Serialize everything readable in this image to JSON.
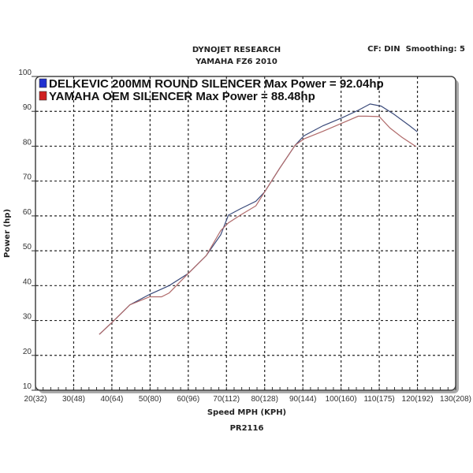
{
  "chart_data": {
    "type": "line",
    "title": "DYNOJET RESEARCH",
    "subtitle": "YAMAHA FZ6 2010",
    "info": "CF: DIN  Smoothing: 5",
    "xlabel": "Speed MPH (KPH)",
    "ylabel": "Power (hp)",
    "footer": "PR2116",
    "xlim": [
      20,
      130
    ],
    "ylim": [
      10,
      100
    ],
    "grid": true,
    "legend_position": "top-left",
    "xticks": [
      20,
      30,
      40,
      50,
      60,
      70,
      80,
      90,
      100,
      110,
      120,
      130
    ],
    "xtick_labels": [
      "20(32)",
      "30(48)",
      "40(64)",
      "50(80)",
      "60(96)",
      "70(112)",
      "80(128)",
      "90(144)",
      "100(160)",
      "110(175)",
      "120(192)",
      "130(208)"
    ],
    "yticks": [
      10,
      20,
      30,
      40,
      50,
      60,
      70,
      80,
      90,
      100
    ],
    "ytick_labels": [
      "10",
      "20",
      "30",
      "40",
      "50",
      "60",
      "70",
      "80",
      "90",
      "100"
    ],
    "series": [
      {
        "name": "DELKEVIC 200MM ROUND SILENCER Max Power = 92.04hp",
        "color": "#3a4a7a",
        "swatch": "#2030d0",
        "x": [
          36.7,
          40,
          44.7,
          49.9,
          55,
          60,
          64.7,
          68.5,
          70.5,
          73.6,
          77.7,
          80,
          83.9,
          88,
          90.3,
          95.3,
          100.2,
          104.5,
          107.6,
          110.5,
          113.8,
          117.9,
          120
        ],
        "y": [
          26,
          29.4,
          34.5,
          37.5,
          40,
          43.5,
          48.6,
          54.6,
          60.2,
          62,
          64.2,
          66.9,
          73.6,
          80.3,
          83,
          85.9,
          88.1,
          90.3,
          92.1,
          91.5,
          89.2,
          85.9,
          84.1
        ]
      },
      {
        "name": "YAMAHA OEM SILENCER Max Power = 88.48hp",
        "color": "#b06a6a",
        "swatch": "#d02020",
        "x": [
          36.7,
          40,
          44.7,
          49.9,
          53,
          55,
          60,
          64.7,
          68.5,
          70.5,
          73.6,
          77.7,
          80,
          83.9,
          88,
          90.3,
          95.3,
          100.2,
          104.5,
          106.6,
          110,
          112.8,
          116,
          119.6
        ],
        "y": [
          26,
          29.4,
          34.5,
          36.8,
          36.8,
          37.9,
          43.5,
          48.6,
          55.8,
          58,
          60.2,
          62.9,
          66.9,
          73.6,
          80.3,
          82.1,
          84.3,
          86.6,
          88.6,
          88.6,
          88.5,
          85.2,
          82.5,
          79.9
        ]
      }
    ]
  }
}
